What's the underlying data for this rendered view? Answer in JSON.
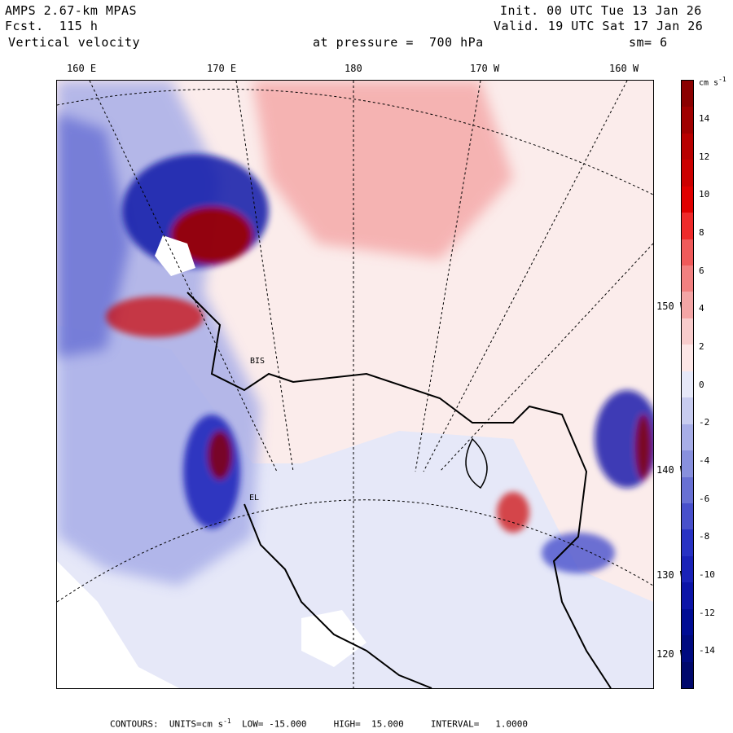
{
  "header": {
    "model": "AMPS 2.67-km MPAS",
    "forecast": "Fcst.  115 h",
    "field": "Vertical velocity",
    "init": "Init. 00 UTC Tue 13 Jan 26",
    "valid": "Valid. 19 UTC Sat 17 Jan 26",
    "pressure": "at pressure =  700 hPa",
    "smoothing": "sm= 6"
  },
  "longitude_labels": [
    "160 E",
    "170 E",
    "180",
    "170 W",
    "160 W"
  ],
  "latitude_labels": [
    "150 W",
    "140 W",
    "130 W",
    "120 W"
  ],
  "stations": [
    "BIS",
    "EL"
  ],
  "colorbar": {
    "unit": "cm s",
    "unit_sup": "-1",
    "ticks": [
      "14",
      "12",
      "10",
      "8",
      "6",
      "4",
      "2",
      "0",
      "-2",
      "-4",
      "-6",
      "-8",
      "-10",
      "-12",
      "-14"
    ],
    "colors": [
      "#8b0000",
      "#a00000",
      "#b80000",
      "#cc0000",
      "#e00000",
      "#ee2a2a",
      "#f05a5a",
      "#f28080",
      "#f4a5a5",
      "#f8cccc",
      "#fce6e6",
      "#e6e8f8",
      "#c8ccf0",
      "#a8aee8",
      "#8890de",
      "#6870d4",
      "#4850cc",
      "#2832c4",
      "#1a22b8",
      "#0c14a8",
      "#000c94",
      "#000a80",
      "#00086c"
    ]
  },
  "footer": {
    "contours_label": "CONTOURS:",
    "units_label": "UNITS=cm s",
    "units_sup": "-1",
    "low": "LOW= -15.000",
    "high": "HIGH=  15.000",
    "interval": "INTERVAL=   1.0000"
  }
}
